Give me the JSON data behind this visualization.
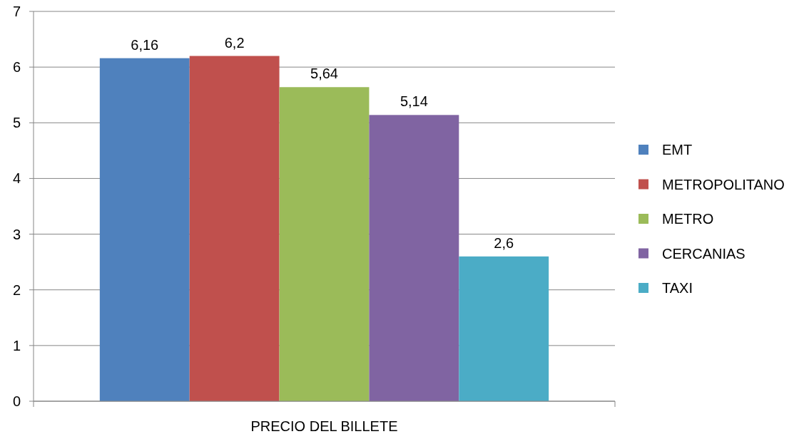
{
  "chart_data": {
    "type": "bar",
    "categories": [
      "PRECIO DEL BILLETE"
    ],
    "series": [
      {
        "name": "EMT",
        "color": "#4f81bd",
        "values": [
          6.16
        ],
        "value_labels": [
          "6,16"
        ]
      },
      {
        "name": "METROPOLITANO",
        "color": "#c0504d",
        "values": [
          6.2
        ],
        "value_labels": [
          "6,2"
        ]
      },
      {
        "name": "METRO",
        "color": "#9bbb59",
        "values": [
          5.64
        ],
        "value_labels": [
          "5,64"
        ]
      },
      {
        "name": "CERCANIAS",
        "color": "#8064a2",
        "values": [
          5.14
        ],
        "value_labels": [
          "5,14"
        ]
      },
      {
        "name": "TAXI",
        "color": "#4bacc6",
        "values": [
          2.6
        ],
        "value_labels": [
          "2,6"
        ]
      }
    ],
    "ylim": [
      0,
      7
    ],
    "yticks": [
      0,
      1,
      2,
      3,
      4,
      5,
      6,
      7
    ],
    "grid": "y",
    "legend": "right"
  }
}
